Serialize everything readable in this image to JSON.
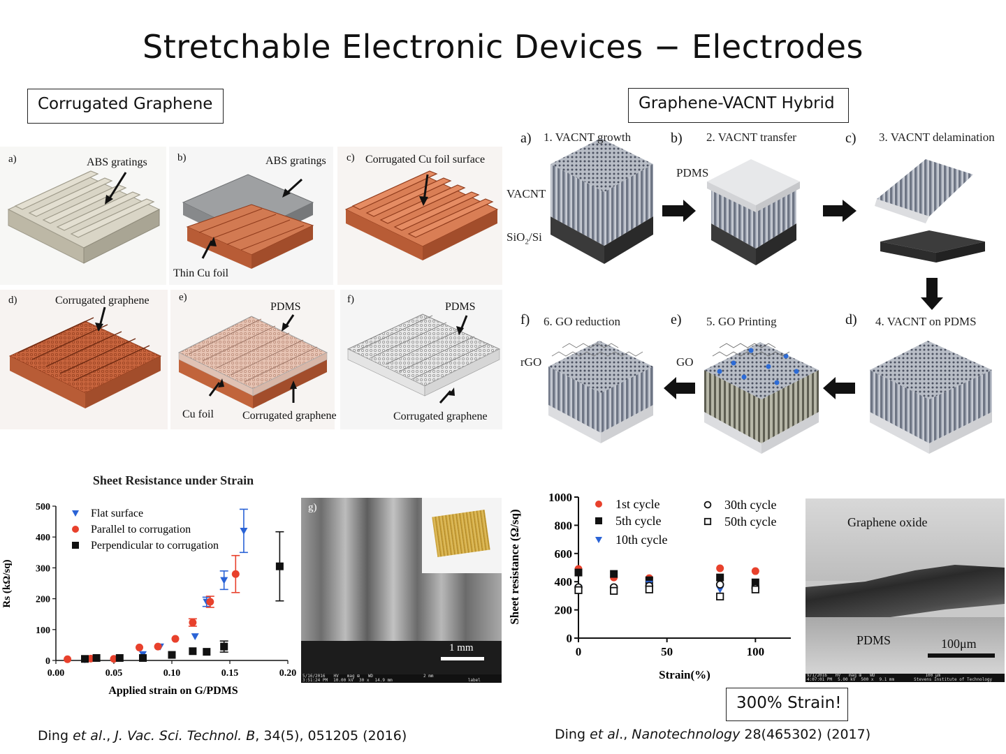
{
  "slide": {
    "title": "Stretchable Electronic Devices − Electrodes"
  },
  "left_section": {
    "header": "Corrugated Graphene",
    "panels": [
      {
        "letter": "a)",
        "labels": [
          "ABS gratings"
        ]
      },
      {
        "letter": "b)",
        "labels": [
          "ABS gratings",
          "Thin Cu foil"
        ]
      },
      {
        "letter": "c)",
        "labels": [
          "Corrugated Cu foil surface"
        ]
      },
      {
        "letter": "d)",
        "labels": [
          "Corrugated graphene"
        ]
      },
      {
        "letter": "e)",
        "labels": [
          "PDMS",
          "Cu foil",
          "Corrugated graphene"
        ]
      },
      {
        "letter": "f)",
        "labels": [
          "PDMS",
          "Corrugated graphene"
        ]
      }
    ],
    "sem": {
      "letter": "g)",
      "scale_label": "1 mm",
      "footer": [
        "5/16/2016",
        "HV",
        "mag ⊞",
        "WD",
        "2 mm",
        "3:51:24 PM",
        "10.00 kV",
        "30 x",
        "14.9 mm",
        "label"
      ]
    },
    "citation": {
      "authors": "Ding",
      "etal": "et al",
      "sep": "., ",
      "journal": "J. Vac. Sci. Technol. B",
      "rest": ", 34(5), 051205 (2016)"
    }
  },
  "right_section": {
    "header": "Graphene-VACNT Hybrid",
    "steps": [
      {
        "letter": "a)",
        "label": "1. VACNT growth"
      },
      {
        "letter": "b)",
        "label": "2. VACNT transfer"
      },
      {
        "letter": "c)",
        "label": "3. VACNT delamination"
      },
      {
        "letter": "d)",
        "label": "4. VACNT on PDMS"
      },
      {
        "letter": "e)",
        "label": "5. GO Printing"
      },
      {
        "letter": "f)",
        "label": "6. GO reduction"
      }
    ],
    "material_labels": {
      "vacnt": "VACNT",
      "sio2_si_pre": "SiO",
      "sio2_si_sub": "2",
      "sio2_si_post": "/Si",
      "pdms": "PDMS",
      "go": "GO",
      "rgo": "rGO"
    },
    "sem": {
      "top_label": "Graphene oxide",
      "bottom_label": "PDMS",
      "scale_label": "100μm",
      "footer": [
        "9/1/2016",
        "HV",
        "mag ⊞",
        "WD",
        "100 μm",
        "4:07:01 PM",
        "5.00 kV",
        "500 x",
        "9.1 mm",
        "Stevens Institute of Technology"
      ]
    },
    "callout": "300% Strain!",
    "citation": {
      "authors": "Ding ",
      "etal": "et al",
      "sep": "., ",
      "journal": "Nanotechnology",
      "rest": " 28(465302) (2017)"
    }
  },
  "chart_data": [
    {
      "type": "scatter",
      "title": "Sheet Resistance under Strain",
      "xlabel": "Applied strain on G/PDMS",
      "ylabel": "Rs (kΩ/sq)",
      "xlim": [
        0.0,
        0.2
      ],
      "ylim": [
        0,
        500
      ],
      "xticks": [
        "0.00",
        "0.05",
        "0.10",
        "0.15",
        "0.20"
      ],
      "yticks": [
        "0",
        "100",
        "200",
        "300",
        "400",
        "500"
      ],
      "legend": "top-left",
      "series": [
        {
          "name": "Flat surface",
          "color": "#2a63d6",
          "marker": "triangle-down",
          "points": [
            [
              0.025,
              3
            ],
            [
              0.075,
              20
            ],
            [
              0.09,
              45
            ],
            [
              0.12,
              78
            ],
            [
              0.13,
              190
            ],
            [
              0.145,
              260
            ],
            [
              0.162,
              420
            ]
          ],
          "errors": [
            0,
            0,
            0,
            0,
            15,
            30,
            70
          ]
        },
        {
          "name": "Parallel to corrugation",
          "color": "#e8412c",
          "marker": "circle",
          "points": [
            [
              0.01,
              4
            ],
            [
              0.03,
              6
            ],
            [
              0.05,
              5
            ],
            [
              0.072,
              42
            ],
            [
              0.088,
              45
            ],
            [
              0.103,
              70
            ],
            [
              0.118,
              123
            ],
            [
              0.133,
              190
            ],
            [
              0.155,
              280
            ]
          ],
          "errors": [
            0,
            0,
            0,
            0,
            0,
            0,
            12,
            18,
            60
          ]
        },
        {
          "name": "Perpendicular to corrugation",
          "color": "#111111",
          "marker": "square",
          "points": [
            [
              0.025,
              5
            ],
            [
              0.035,
              8
            ],
            [
              0.055,
              8
            ],
            [
              0.075,
              8
            ],
            [
              0.1,
              18
            ],
            [
              0.118,
              30
            ],
            [
              0.13,
              28
            ],
            [
              0.145,
              45
            ],
            [
              0.193,
              305
            ]
          ],
          "errors": [
            0,
            0,
            0,
            0,
            0,
            0,
            0,
            18,
            112
          ]
        }
      ]
    },
    {
      "type": "scatter",
      "title": "",
      "xlabel": "Strain(%)",
      "ylabel": "Sheet resistance (Ω/sq)",
      "xlim": [
        0,
        120
      ],
      "ylim": [
        0,
        1000
      ],
      "xticks": [
        "0",
        "50",
        "100"
      ],
      "yticks": [
        "0",
        "200",
        "400",
        "600",
        "800",
        "1000"
      ],
      "legend": "top",
      "series": [
        {
          "name": "1st cycle",
          "color": "#e8412c",
          "marker": "circle",
          "points": [
            [
              0,
              490
            ],
            [
              20,
              430
            ],
            [
              40,
              425
            ],
            [
              80,
              495
            ],
            [
              100,
              475
            ]
          ]
        },
        {
          "name": "5th cycle",
          "color": "#111111",
          "marker": "square",
          "points": [
            [
              0,
              465
            ],
            [
              20,
              455
            ],
            [
              40,
              410
            ],
            [
              80,
              430
            ],
            [
              100,
              395
            ]
          ]
        },
        {
          "name": "10th cycle",
          "color": "#2a63d6",
          "marker": "triangle-down",
          "points": [
            [
              0,
              355
            ],
            [
              20,
              350
            ],
            [
              40,
              385
            ],
            [
              80,
              345
            ],
            [
              100,
              350
            ]
          ]
        },
        {
          "name": "30th cycle",
          "color": "#111111",
          "marker": "circle-open",
          "points": [
            [
              0,
              360
            ],
            [
              20,
              360
            ],
            [
              40,
              370
            ],
            [
              80,
              380
            ],
            [
              100,
              355
            ]
          ]
        },
        {
          "name": "50th cycle",
          "color": "#111111",
          "marker": "square-open",
          "points": [
            [
              0,
              340
            ],
            [
              20,
              335
            ],
            [
              40,
              345
            ],
            [
              80,
              295
            ],
            [
              100,
              345
            ]
          ]
        }
      ]
    }
  ]
}
